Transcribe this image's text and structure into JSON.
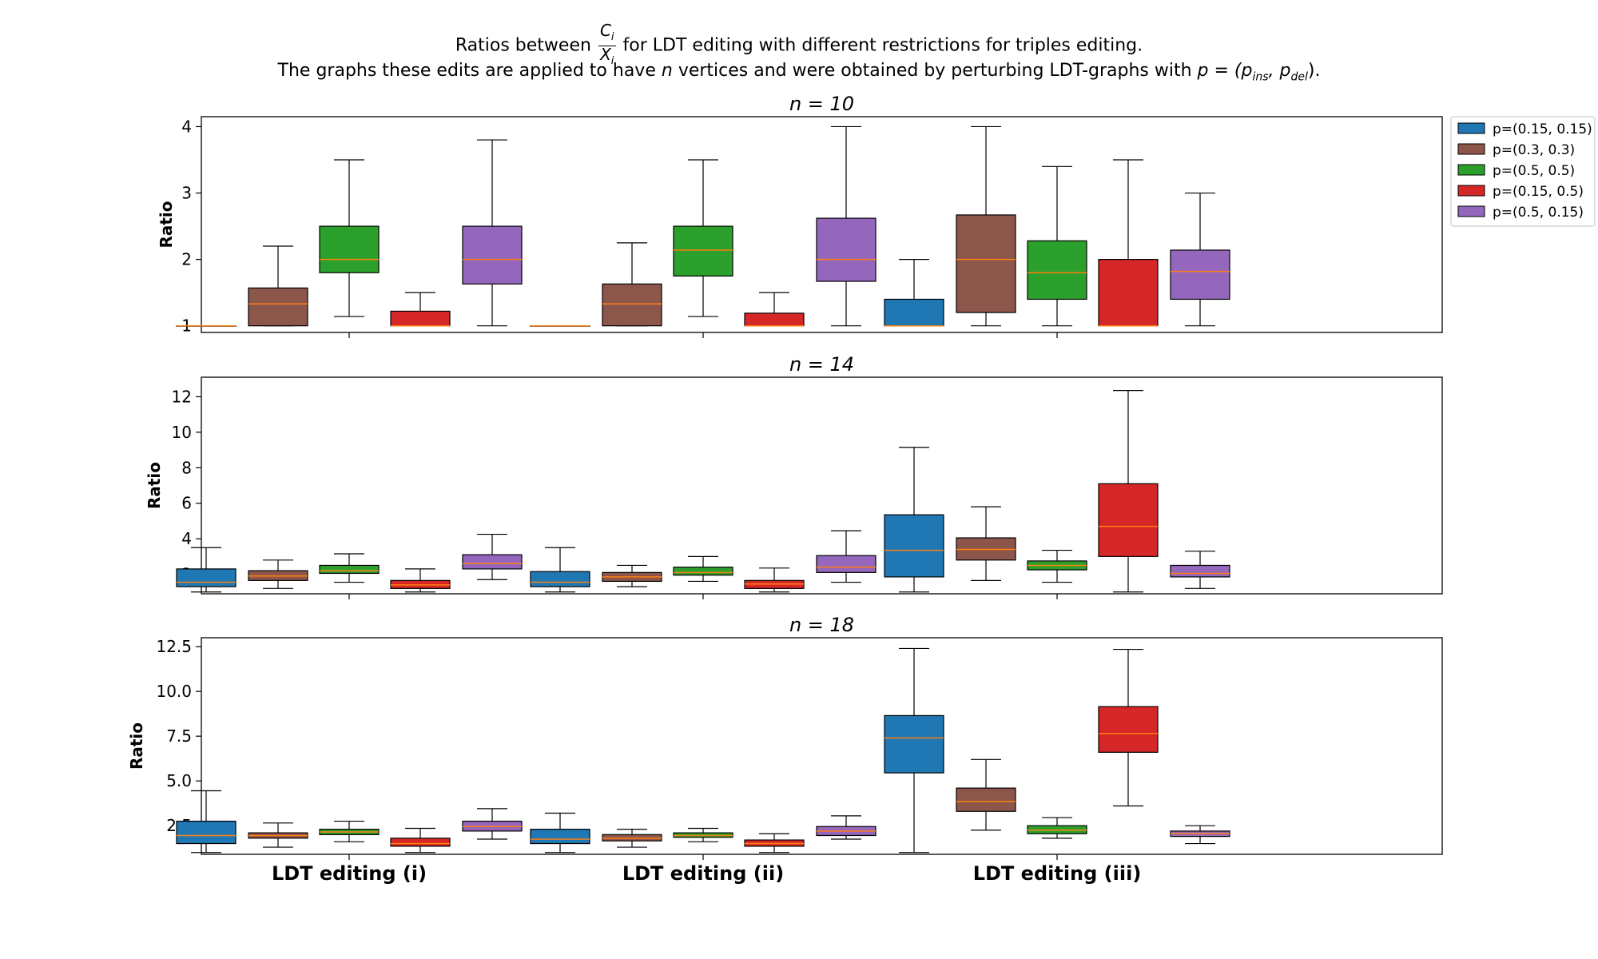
{
  "title": {
    "line1_prefix": "Ratios between",
    "frac_num": "C",
    "frac_num_sub": "i",
    "frac_den": "X",
    "frac_den_sub": "i",
    "line1_suffix": "for LDT editing with different restrictions for triples editing.",
    "line2_a": "The graphs these edits are applied to have",
    "line2_n": "n",
    "line2_b": "vertices and were obtained by perturbing LDT-graphs with",
    "line2_p": "p = (p",
    "line2_ins": "ins",
    "line2_comma": ", p",
    "line2_del": "del",
    "line2_end": ")."
  },
  "legend": {
    "placement": "outside top-right",
    "entries": [
      {
        "label": "p=(0.15, 0.15)",
        "color": "#1f77b4"
      },
      {
        "label": "p=(0.3, 0.3)",
        "color": "#8c564b"
      },
      {
        "label": "p=(0.5, 0.5)",
        "color": "#2ca02c"
      },
      {
        "label": "p=(0.15, 0.5)",
        "color": "#d62728"
      },
      {
        "label": "p=(0.5, 0.15)",
        "color": "#9467bd"
      }
    ]
  },
  "colors": {
    "median": "#ff7f0e",
    "whisker": "#000000"
  },
  "chart_data": [
    {
      "type": "boxplot",
      "title": "n = 10",
      "ylabel": "Ratio",
      "ylim": [
        0.9,
        4.15
      ],
      "yticks": [
        1,
        2,
        3,
        4
      ],
      "ytick_labels": [
        "1",
        "2",
        "3",
        "4"
      ],
      "categories": [
        "LDT editing (i)",
        "LDT editing (ii)",
        "LDT editing (iii)"
      ],
      "series": [
        {
          "name": "p=(0.15, 0.15)",
          "boxes": [
            {
              "whislo": 1.0,
              "q1": 1.0,
              "med": 1.0,
              "q3": 1.0,
              "whishi": 1.0
            },
            {
              "whislo": 1.0,
              "q1": 1.0,
              "med": 1.0,
              "q3": 1.0,
              "whishi": 1.0
            },
            {
              "whislo": 1.0,
              "q1": 1.0,
              "med": 1.0,
              "q3": 1.4,
              "whishi": 2.0
            }
          ]
        },
        {
          "name": "p=(0.3, 0.3)",
          "boxes": [
            {
              "whislo": 1.0,
              "q1": 1.0,
              "med": 1.33,
              "q3": 1.57,
              "whishi": 2.2
            },
            {
              "whislo": 1.0,
              "q1": 1.0,
              "med": 1.33,
              "q3": 1.63,
              "whishi": 2.25
            },
            {
              "whislo": 1.0,
              "q1": 1.2,
              "med": 2.0,
              "q3": 2.67,
              "whishi": 4.0
            }
          ]
        },
        {
          "name": "p=(0.5, 0.5)",
          "boxes": [
            {
              "whislo": 1.14,
              "q1": 1.8,
              "med": 2.0,
              "q3": 2.5,
              "whishi": 3.5
            },
            {
              "whislo": 1.14,
              "q1": 1.75,
              "med": 2.14,
              "q3": 2.5,
              "whishi": 3.5
            },
            {
              "whislo": 1.0,
              "q1": 1.4,
              "med": 1.8,
              "q3": 2.28,
              "whishi": 3.4
            }
          ]
        },
        {
          "name": "p=(0.15, 0.5)",
          "boxes": [
            {
              "whislo": 1.0,
              "q1": 1.0,
              "med": 1.0,
              "q3": 1.22,
              "whishi": 1.5
            },
            {
              "whislo": 1.0,
              "q1": 1.0,
              "med": 1.0,
              "q3": 1.19,
              "whishi": 1.5
            },
            {
              "whislo": 1.0,
              "q1": 1.0,
              "med": 1.0,
              "q3": 2.0,
              "whishi": 3.5
            }
          ]
        },
        {
          "name": "p=(0.5, 0.15)",
          "boxes": [
            {
              "whislo": 1.0,
              "q1": 1.63,
              "med": 2.0,
              "q3": 2.5,
              "whishi": 3.8
            },
            {
              "whislo": 1.0,
              "q1": 1.67,
              "med": 2.0,
              "q3": 2.62,
              "whishi": 4.0
            },
            {
              "whislo": 1.0,
              "q1": 1.4,
              "med": 1.82,
              "q3": 2.14,
              "whishi": 3.0
            }
          ]
        }
      ]
    },
    {
      "type": "boxplot",
      "title": "n = 14",
      "ylabel": "Ratio",
      "ylim": [
        0.9,
        13.1
      ],
      "yticks": [
        2,
        4,
        6,
        8,
        10,
        12
      ],
      "ytick_labels": [
        "2",
        "4",
        "6",
        "8",
        "10",
        "12"
      ],
      "categories": [
        "LDT editing (i)",
        "LDT editing (ii)",
        "LDT editing (iii)"
      ],
      "series": [
        {
          "name": "p=(0.15, 0.15)",
          "boxes": [
            {
              "whislo": 1.0,
              "q1": 1.3,
              "med": 1.55,
              "q3": 2.3,
              "whishi": 3.5
            },
            {
              "whislo": 1.0,
              "q1": 1.3,
              "med": 1.55,
              "q3": 2.15,
              "whishi": 3.5
            },
            {
              "whislo": 1.0,
              "q1": 1.85,
              "med": 3.35,
              "q3": 5.35,
              "whishi": 9.15
            }
          ]
        },
        {
          "name": "p=(0.3, 0.3)",
          "boxes": [
            {
              "whislo": 1.2,
              "q1": 1.65,
              "med": 1.9,
              "q3": 2.2,
              "whishi": 2.8
            },
            {
              "whislo": 1.3,
              "q1": 1.6,
              "med": 1.85,
              "q3": 2.1,
              "whishi": 2.5
            },
            {
              "whislo": 1.65,
              "q1": 2.8,
              "med": 3.4,
              "q3": 4.05,
              "whishi": 5.8
            }
          ]
        },
        {
          "name": "p=(0.5, 0.5)",
          "boxes": [
            {
              "whislo": 1.55,
              "q1": 2.05,
              "med": 2.2,
              "q3": 2.5,
              "whishi": 3.15
            },
            {
              "whislo": 1.6,
              "q1": 1.95,
              "med": 2.1,
              "q3": 2.4,
              "whishi": 3.0
            },
            {
              "whislo": 1.55,
              "q1": 2.25,
              "med": 2.5,
              "q3": 2.75,
              "whishi": 3.35
            }
          ]
        },
        {
          "name": "p=(0.15, 0.5)",
          "boxes": [
            {
              "whislo": 1.0,
              "q1": 1.2,
              "med": 1.4,
              "q3": 1.65,
              "whishi": 2.3
            },
            {
              "whislo": 1.0,
              "q1": 1.2,
              "med": 1.45,
              "q3": 1.65,
              "whishi": 2.35
            },
            {
              "whislo": 1.0,
              "q1": 3.0,
              "med": 4.7,
              "q3": 7.1,
              "whishi": 12.35
            }
          ]
        },
        {
          "name": "p=(0.5, 0.15)",
          "boxes": [
            {
              "whislo": 1.7,
              "q1": 2.3,
              "med": 2.6,
              "q3": 3.1,
              "whishi": 4.25
            },
            {
              "whislo": 1.55,
              "q1": 2.1,
              "med": 2.4,
              "q3": 3.05,
              "whishi": 4.45
            },
            {
              "whislo": 1.2,
              "q1": 1.85,
              "med": 2.05,
              "q3": 2.5,
              "whishi": 3.3
            }
          ]
        }
      ]
    },
    {
      "type": "boxplot",
      "title": "n = 18",
      "ylabel": "Ratio",
      "ylim": [
        0.9,
        13.0
      ],
      "yticks": [
        2.5,
        5.0,
        7.5,
        10.0,
        12.5
      ],
      "ytick_labels": [
        "2.5",
        "5.0",
        "7.5",
        "10.0",
        "12.5"
      ],
      "categories": [
        "LDT editing (i)",
        "LDT editing (ii)",
        "LDT editing (iii)"
      ],
      "series": [
        {
          "name": "p=(0.15, 0.15)",
          "boxes": [
            {
              "whislo": 1.0,
              "q1": 1.5,
              "med": 1.95,
              "q3": 2.75,
              "whishi": 4.45
            },
            {
              "whislo": 1.0,
              "q1": 1.5,
              "med": 1.75,
              "q3": 2.3,
              "whishi": 3.2
            },
            {
              "whislo": 1.0,
              "q1": 5.45,
              "med": 7.4,
              "q3": 8.65,
              "whishi": 12.4
            }
          ]
        },
        {
          "name": "p=(0.3, 0.3)",
          "boxes": [
            {
              "whislo": 1.3,
              "q1": 1.8,
              "med": 1.95,
              "q3": 2.1,
              "whishi": 2.65
            },
            {
              "whislo": 1.3,
              "q1": 1.65,
              "med": 1.8,
              "q3": 2.0,
              "whishi": 2.3
            },
            {
              "whislo": 2.25,
              "q1": 3.3,
              "med": 3.85,
              "q3": 4.6,
              "whishi": 6.2
            }
          ]
        },
        {
          "name": "p=(0.5, 0.5)",
          "boxes": [
            {
              "whislo": 1.6,
              "q1": 2.0,
              "med": 2.15,
              "q3": 2.3,
              "whishi": 2.75
            },
            {
              "whislo": 1.6,
              "q1": 1.85,
              "med": 1.95,
              "q3": 2.1,
              "whishi": 2.35
            },
            {
              "whislo": 1.8,
              "q1": 2.05,
              "med": 2.25,
              "q3": 2.5,
              "whishi": 2.95
            }
          ]
        },
        {
          "name": "p=(0.15, 0.5)",
          "boxes": [
            {
              "whislo": 1.0,
              "q1": 1.35,
              "med": 1.5,
              "q3": 1.8,
              "whishi": 2.35
            },
            {
              "whislo": 1.0,
              "q1": 1.35,
              "med": 1.5,
              "q3": 1.7,
              "whishi": 2.05
            },
            {
              "whislo": 3.6,
              "q1": 6.6,
              "med": 7.65,
              "q3": 9.15,
              "whishi": 12.35
            }
          ]
        },
        {
          "name": "p=(0.5, 0.15)",
          "boxes": [
            {
              "whislo": 1.75,
              "q1": 2.2,
              "med": 2.45,
              "q3": 2.75,
              "whishi": 3.45
            },
            {
              "whislo": 1.75,
              "q1": 1.95,
              "med": 2.2,
              "q3": 2.45,
              "whishi": 3.05
            },
            {
              "whislo": 1.5,
              "q1": 1.9,
              "med": 2.05,
              "q3": 2.2,
              "whishi": 2.5
            }
          ]
        }
      ]
    }
  ]
}
